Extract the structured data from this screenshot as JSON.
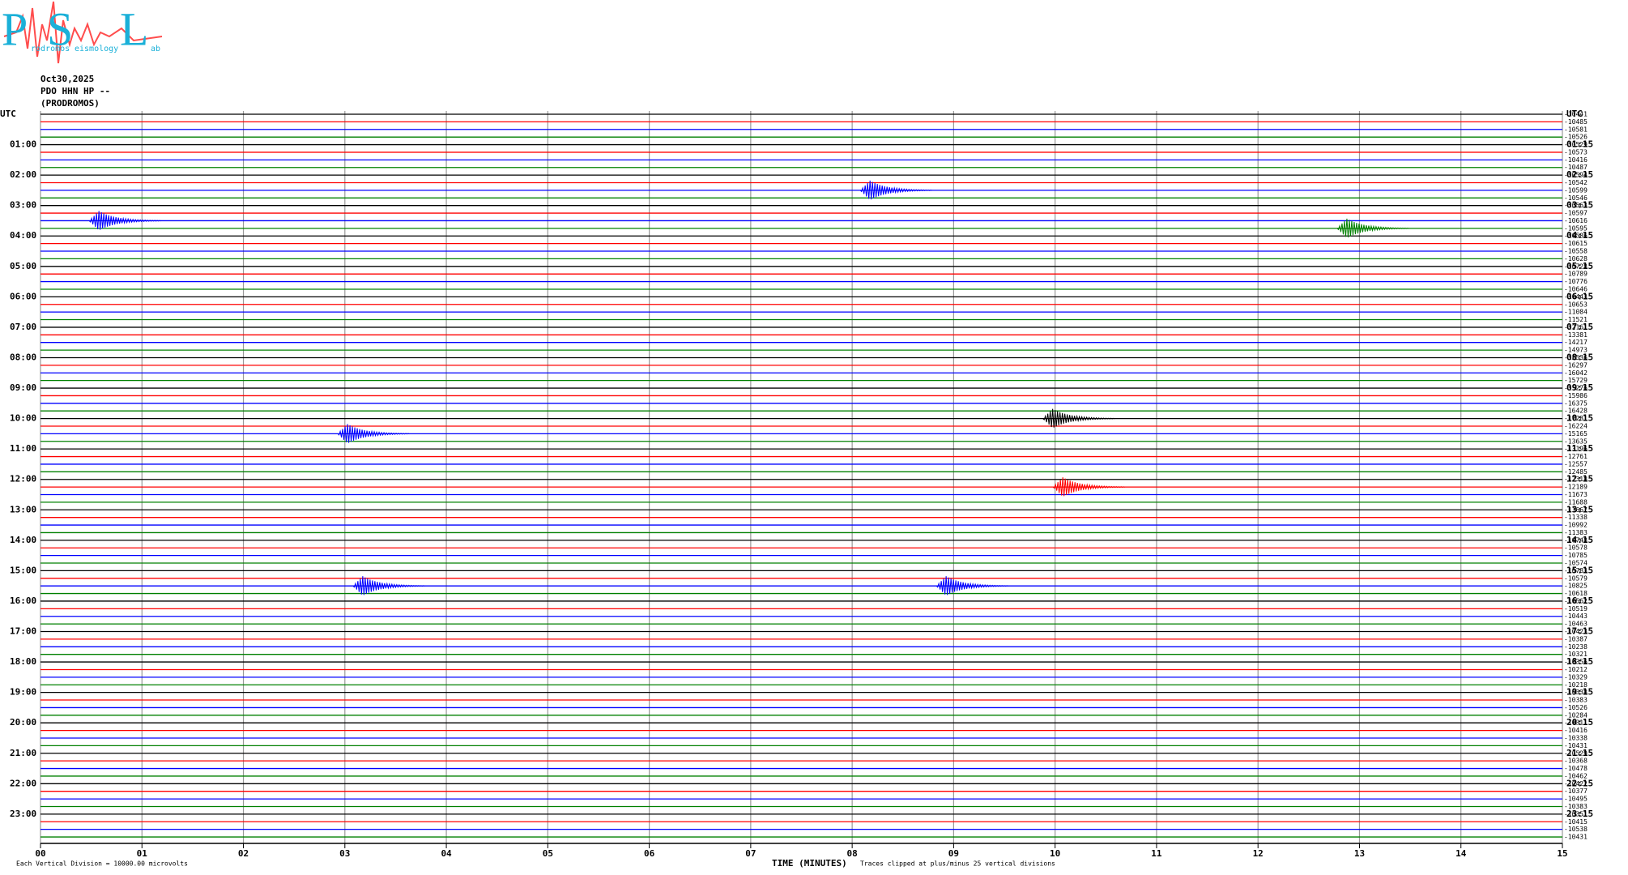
{
  "header": {
    "logo_letters": [
      "P",
      "S",
      "L"
    ],
    "logo_words": [
      "rodromos",
      "eismology",
      "ab"
    ],
    "date": "Oct30,2025",
    "station": "PDO HHN HP --",
    "site": "(PRODROMOS)"
  },
  "chart_data": {
    "type": "helicorder",
    "colors": [
      "#000000",
      "#ff0000",
      "#0000ff",
      "#008000"
    ],
    "left_labels": [
      "UTC",
      "01:00",
      "02:00",
      "03:00",
      "04:00",
      "05:00",
      "06:00",
      "07:00",
      "08:00",
      "09:00",
      "10:00",
      "11:00",
      "12:00",
      "13:00",
      "14:00",
      "15:00",
      "16:00",
      "17:00",
      "18:00",
      "19:00",
      "20:00",
      "21:00",
      "22:00",
      "23:00"
    ],
    "right_labels": [
      "UTC",
      "01:15",
      "02:15",
      "03:15",
      "04:15",
      "05:15",
      "06:15",
      "07:15",
      "08:15",
      "09:15",
      "10:15",
      "11:15",
      "12:15",
      "13:15",
      "14:15",
      "15:15",
      "16:15",
      "17:15",
      "18:15",
      "19:15",
      "20:15",
      "21:15",
      "22:15",
      "23:15"
    ],
    "offsets": [
      -10441,
      -10485,
      -10581,
      -10526,
      -10529,
      -10573,
      -10416,
      -10487,
      -10594,
      -10542,
      -10599,
      -10546,
      -10563,
      -10597,
      -10616,
      -10595,
      -10586,
      -10615,
      -10558,
      -10628,
      -10728,
      -10789,
      -10776,
      -10646,
      -10443,
      -10653,
      -11084,
      -11521,
      -12161,
      -13381,
      -14217,
      -14973,
      -15536,
      -16297,
      -16042,
      -15729,
      -15276,
      -15986,
      -16375,
      -16428,
      -17281,
      -16224,
      -15165,
      -13635,
      -13196,
      -12761,
      -12557,
      -12485,
      -12318,
      -12189,
      -11673,
      -11688,
      -11667,
      -11338,
      -10992,
      -11383,
      -10748,
      -10578,
      -10785,
      -10574,
      -10783,
      -10579,
      -10825,
      -10618,
      -10562,
      -10519,
      -10443,
      -10463,
      -10423,
      -10387,
      -10238,
      -10321,
      -10356,
      -10212,
      -10329,
      -10218,
      -10338,
      -10383,
      -10526,
      -10284,
      -10311,
      -10416,
      -10338,
      -10431,
      -10529,
      -10368,
      -10478,
      -10462,
      -10422,
      -10377,
      -10495,
      -10383,
      -10351,
      -10415,
      -10538,
      -10431
    ],
    "events": [
      {
        "trace": 10,
        "minute": 8.2
      },
      {
        "trace": 14,
        "minute": 0.6
      },
      {
        "trace": 15,
        "minute": 12.9
      },
      {
        "trace": 40,
        "minute": 10.0
      },
      {
        "trace": 42,
        "minute": 3.05
      },
      {
        "trace": 49,
        "minute": 10.1
      },
      {
        "trace": 62,
        "minute": 3.2
      },
      {
        "trace": 62,
        "minute": 8.95
      }
    ],
    "xlim": [
      0,
      15
    ],
    "xticks": [
      {
        "value": 0,
        "label": "00"
      },
      {
        "value": 1,
        "label": "01"
      },
      {
        "value": 2,
        "label": "02"
      },
      {
        "value": 3,
        "label": "03"
      },
      {
        "value": 4,
        "label": "04"
      },
      {
        "value": 5,
        "label": "05"
      },
      {
        "value": 6,
        "label": "06"
      },
      {
        "value": 7,
        "label": "07"
      },
      {
        "value": 8,
        "label": "08"
      },
      {
        "value": 9,
        "label": "09"
      },
      {
        "value": 10,
        "label": "10"
      },
      {
        "value": 11,
        "label": "11"
      },
      {
        "value": 12,
        "label": "12"
      },
      {
        "value": 13,
        "label": "13"
      },
      {
        "value": 14,
        "label": "14"
      },
      {
        "value": 15,
        "label": "15"
      }
    ],
    "xlabel": "TIME (MINUTES)",
    "scale_note": "Each Vertical Division = 10000.00 microvolts",
    "clip_note": "Traces clipped at plus/minus 25 vertical divisions",
    "grid": true
  }
}
